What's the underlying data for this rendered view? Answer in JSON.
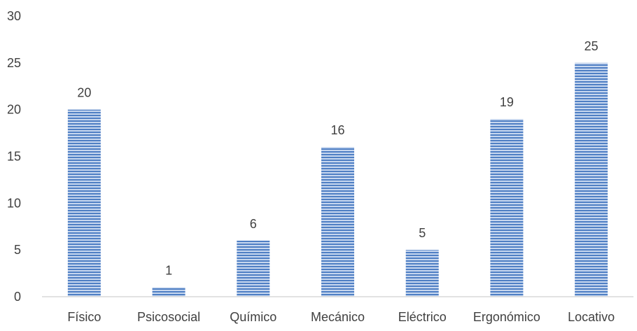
{
  "chart_data": {
    "type": "bar",
    "title": "",
    "xlabel": "",
    "ylabel": "",
    "categories": [
      "Físico",
      "Psicosocial",
      "Químico",
      "Mecánico",
      "Eléctrico",
      "Ergonómico",
      "Locativo"
    ],
    "values": [
      20,
      1,
      6,
      16,
      5,
      19,
      25
    ],
    "ylim": [
      0,
      30
    ],
    "yticks": [
      0,
      5,
      10,
      15,
      20,
      25,
      30
    ],
    "grid": false,
    "legend": "none",
    "data_labels": true,
    "bar_color": "#4f7fc4",
    "bar_pattern": "horizontal-stripes",
    "bar_stripe_color": "#b9cdeb"
  }
}
